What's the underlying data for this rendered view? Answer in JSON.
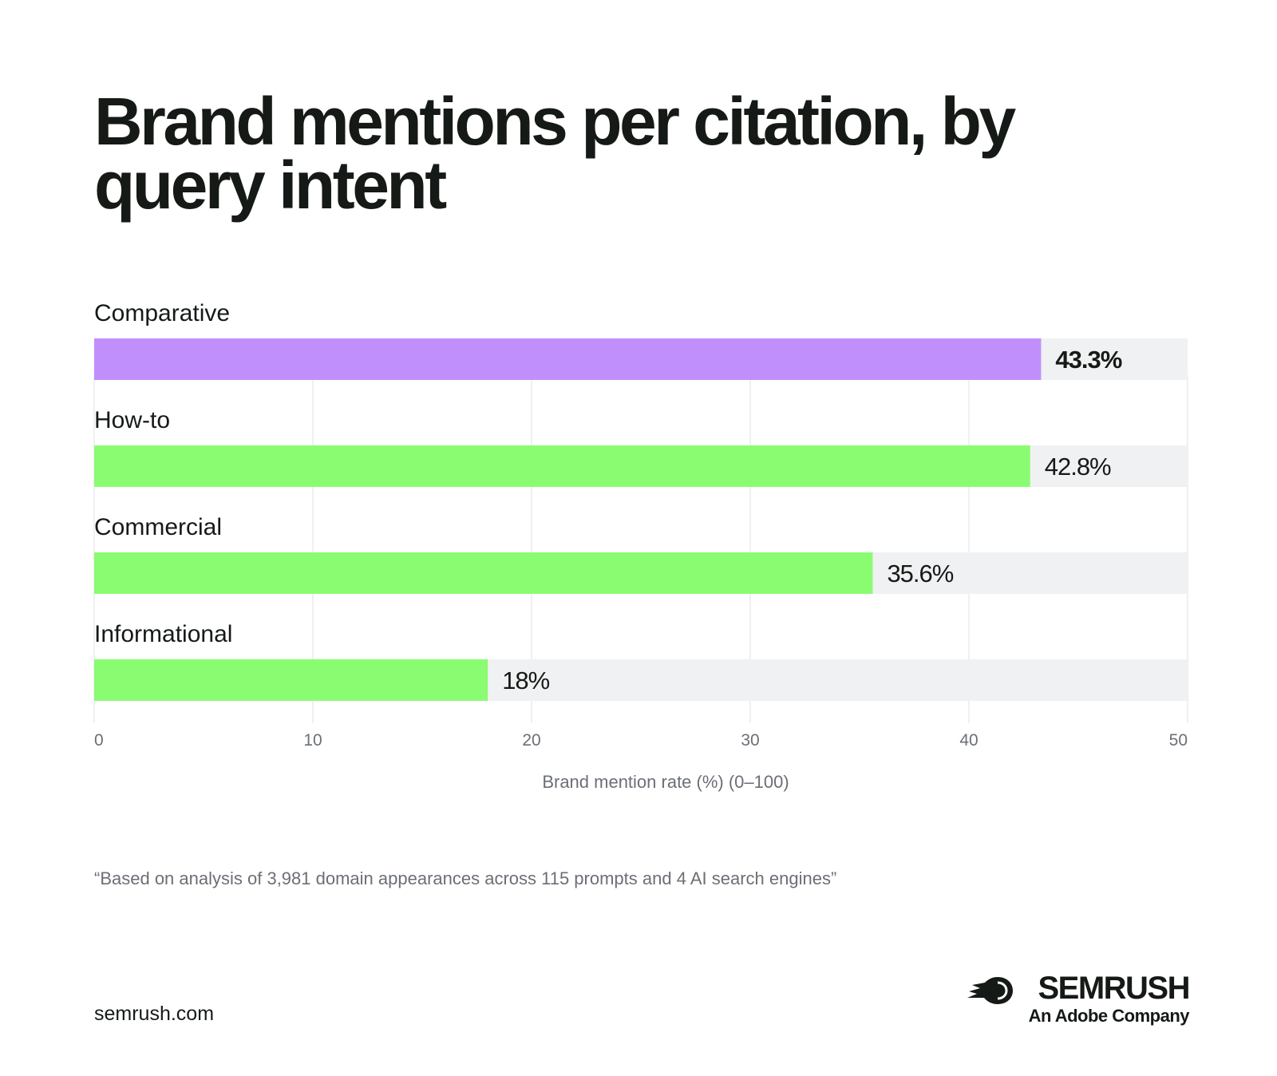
{
  "title": "Brand mentions per citation, by query intent",
  "chart_data": {
    "type": "bar",
    "orientation": "horizontal",
    "title": "Brand mentions per citation, by query intent",
    "categories": [
      "Comparative",
      "How-to",
      "Commercial",
      "Informational"
    ],
    "values": [
      43.3,
      42.8,
      35.6,
      18
    ],
    "value_labels": [
      "43.3%",
      "42.8%",
      "35.6%",
      "18%"
    ],
    "bar_colors": [
      "#c18ffc",
      "#8afc72",
      "#8afc72",
      "#8afc72"
    ],
    "track_color": "#f0f1f3",
    "highlighted_category": "Comparative",
    "xlim": [
      0,
      50
    ],
    "xticks": [
      0,
      10,
      20,
      30,
      40,
      50
    ],
    "xlabel": "Brand mention rate (%) (0–100)",
    "ylabel": "",
    "grid": true,
    "legend": "none"
  },
  "footnote": "“Based on analysis of 3,981 domain appearances across 115 prompts and 4 AI search engines”",
  "footer": {
    "site": "semrush.com",
    "brand": "SEMRUSH",
    "brand_sub": "An Adobe Company",
    "logo_icon": "semrush-fireball-icon"
  }
}
